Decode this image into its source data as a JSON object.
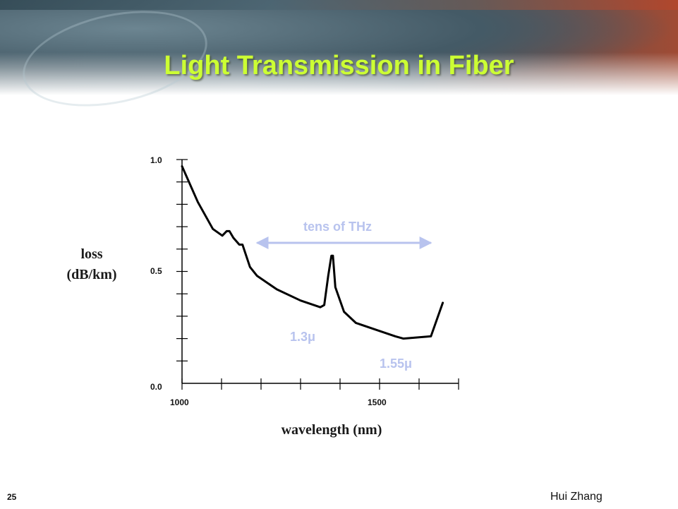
{
  "slide": {
    "title": "Light Transmission in Fiber",
    "page_number": "25",
    "author": "Hui Zhang"
  },
  "colors": {
    "title": "#ccff33",
    "curve": "#000000",
    "annotation": "#b8c3ee"
  },
  "chart_data": {
    "type": "line",
    "title": "",
    "ylabel_line1": "loss",
    "ylabel_line2": "(dB/km)",
    "xlabel": "wavelength (nm)",
    "xlim": [
      1000,
      1700
    ],
    "ylim": [
      0.0,
      1.0
    ],
    "x_tick_labels": [
      {
        "value": 1000,
        "label": "1000"
      },
      {
        "value": 1500,
        "label": "1500"
      }
    ],
    "x_minor_ticks": [
      1000,
      1100,
      1200,
      1300,
      1400,
      1500,
      1600,
      1700
    ],
    "y_tick_labels": [
      {
        "value": 0.0,
        "label": "0.0"
      },
      {
        "value": 0.5,
        "label": "0.5"
      },
      {
        "value": 1.0,
        "label": "1.0"
      }
    ],
    "y_minor_ticks": [
      0.1,
      0.2,
      0.3,
      0.4,
      0.5,
      0.6,
      0.7,
      0.8,
      0.9,
      1.0
    ],
    "grid": false,
    "series": [
      {
        "x": [
          1000,
          1015,
          1040,
          1078,
          1102,
          1113,
          1120,
          1130,
          1145,
          1153,
          1172,
          1190,
          1240,
          1300,
          1350,
          1360,
          1370,
          1378,
          1382,
          1388,
          1410,
          1440,
          1490,
          1540,
          1560,
          1630,
          1660
        ],
        "y": [
          0.97,
          0.91,
          0.81,
          0.69,
          0.66,
          0.68,
          0.68,
          0.65,
          0.62,
          0.62,
          0.52,
          0.48,
          0.42,
          0.37,
          0.34,
          0.35,
          0.48,
          0.57,
          0.57,
          0.43,
          0.32,
          0.27,
          0.24,
          0.21,
          0.2,
          0.21,
          0.36
        ]
      }
    ],
    "annotations": {
      "bandwidth_label": "tens of THz",
      "bandwidth_range": [
        1190,
        1630
      ],
      "window1_label": "1.3μ",
      "window2_label": "1.55μ"
    }
  }
}
